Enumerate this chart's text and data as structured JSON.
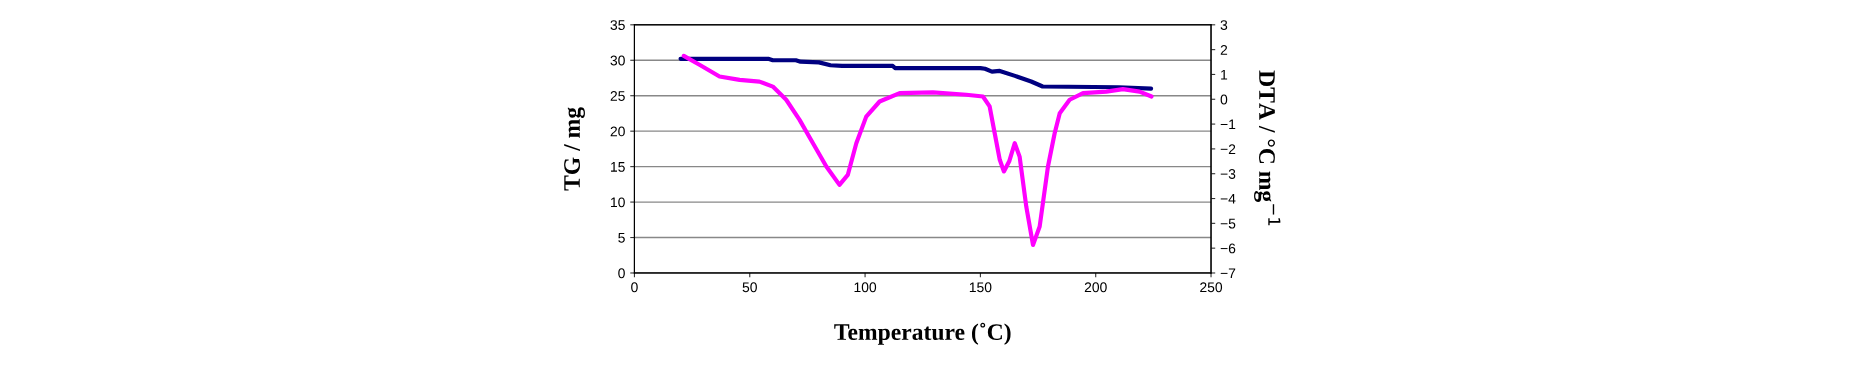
{
  "chart_data": {
    "type": "line",
    "xlabel": "Temperature (˚C)",
    "ylabel": "TG / mg",
    "y2label": "DTA / °C mg$^{−1}$",
    "xlim": [
      0,
      250
    ],
    "xticks": [
      0,
      50,
      100,
      150,
      200,
      250
    ],
    "ylim": [
      0,
      35
    ],
    "yticks": [
      0,
      5,
      10,
      15,
      20,
      25,
      30,
      35
    ],
    "y2lim": [
      -7,
      3
    ],
    "y2ticks": [
      -7,
      -6,
      -5,
      -4,
      -3,
      -2,
      -1,
      0,
      1,
      2,
      3
    ],
    "grid": "y",
    "marker": "none",
    "line_style": "solid",
    "series": [
      {
        "color": "#000080",
        "x": [
          20,
          58,
          60,
          70,
          72,
          80,
          85,
          90,
          112,
          113,
          150,
          152,
          155,
          158.4,
          165,
          172,
          177,
          210,
          224
        ],
        "values": [
          30.2,
          30.2,
          30.0,
          30.0,
          29.8,
          29.7,
          29.3,
          29.2,
          29.2,
          28.9,
          28.9,
          28.8,
          28.4,
          28.5,
          27.8,
          27.0,
          26.3,
          26.2,
          26.0
        ]
      },
      {
        "color": "#ff00ff",
        "axis": "y2",
        "x": [
          21.4,
          28.2,
          36.9,
          45.6,
          54.2,
          60,
          65.8,
          71.6,
          77.4,
          83.2,
          88.9,
          92.5,
          96.2,
          100.5,
          106.3,
          115,
          129.4,
          143.9,
          151.1,
          154,
          156.2,
          158.4,
          160.2,
          162.5,
          164.9,
          167,
          169.9,
          172.8,
          175.7,
          179.3,
          182.2,
          184.4,
          188.7,
          194.5,
          204.6,
          211.8,
          219,
          224.2
        ],
        "values": [
          1.75,
          1.39,
          0.92,
          0.78,
          0.71,
          0.51,
          -0.02,
          -0.83,
          -1.77,
          -2.71,
          -3.45,
          -3.05,
          -1.77,
          -0.7,
          -0.09,
          0.25,
          0.28,
          0.18,
          0.11,
          -0.29,
          -1.37,
          -2.44,
          -2.91,
          -2.5,
          -1.77,
          -2.31,
          -4.33,
          -5.87,
          -5.13,
          -2.71,
          -1.37,
          -0.56,
          -0.02,
          0.25,
          0.31,
          0.41,
          0.31,
          0.11
        ]
      }
    ]
  }
}
